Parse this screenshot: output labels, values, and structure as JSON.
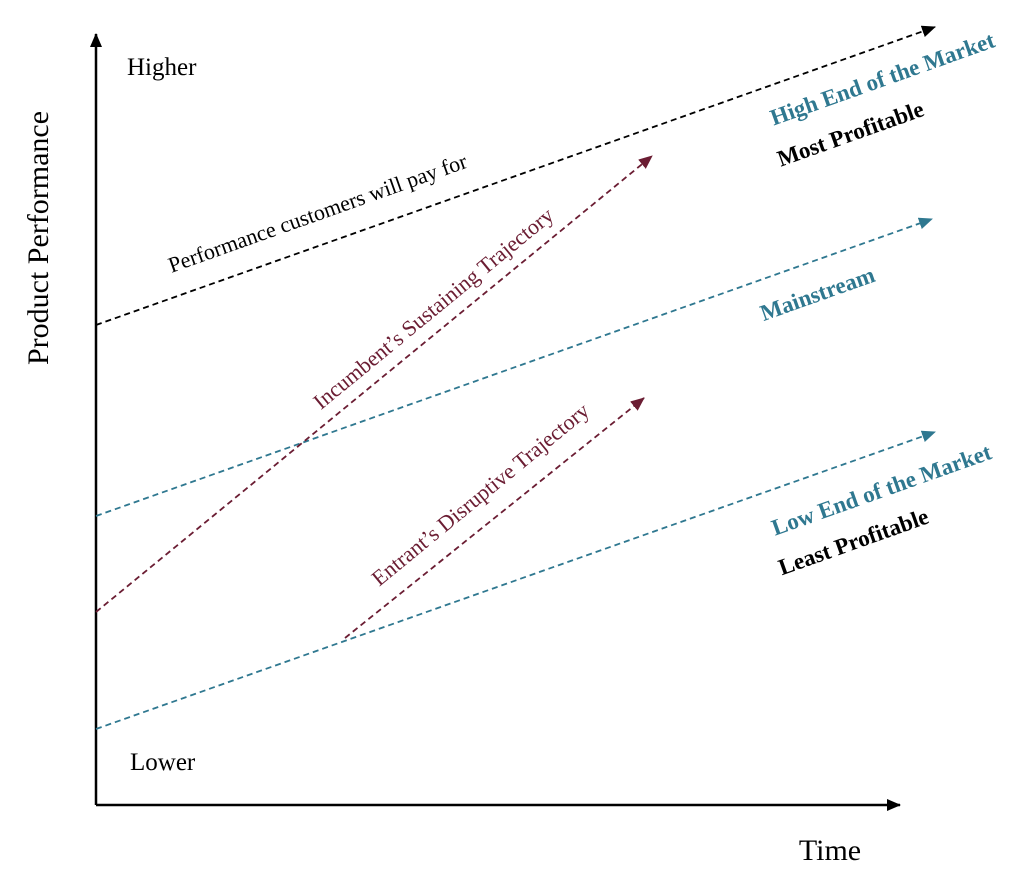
{
  "axes": {
    "y_title": "Product Performance",
    "x_title": "Time",
    "y_high_label": "Higher",
    "y_low_label": "Lower"
  },
  "lines": {
    "customer_demand": "Performance customers will pay for",
    "incumbent": "Incumbent’s Sustaining Trajectory",
    "entrant": "Entrant’s Disruptive Trajectory"
  },
  "tiers": {
    "high": {
      "name": "High End of the Market",
      "note": "Most Profitable"
    },
    "mid": {
      "name": "Mainstream"
    },
    "low": {
      "name": "Low End of the Market",
      "note": "Least Profitable"
    }
  },
  "colors": {
    "black": "#000000",
    "teal": "#2f7890",
    "maroon": "#6b1d33"
  }
}
